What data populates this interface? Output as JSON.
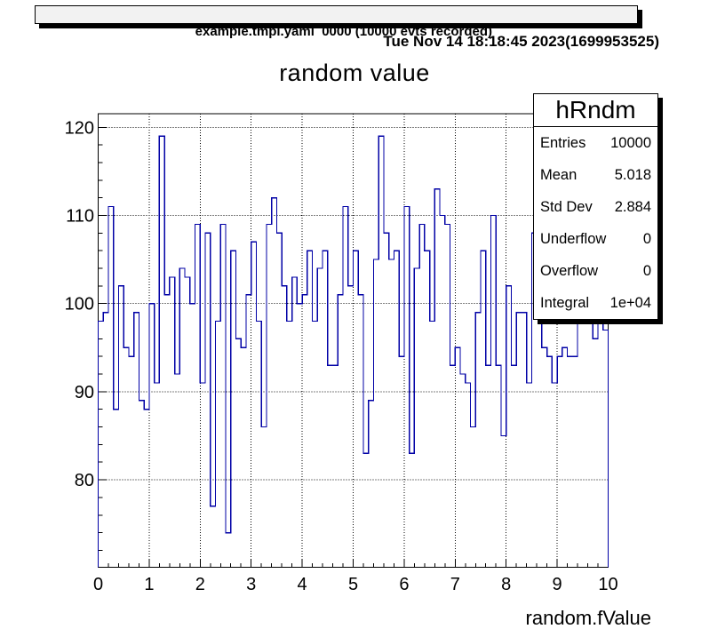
{
  "window": {
    "title_bar": "example.tmpl.yaml  0000 (10000 evts recorded)",
    "datestamp": "Tue Nov 14 18:18:45 2023(1699953525)"
  },
  "stats": {
    "title": "hRndm",
    "rows": [
      {
        "label": "Entries",
        "value": "10000"
      },
      {
        "label": "Mean",
        "value": "5.018"
      },
      {
        "label": "Std Dev",
        "value": "2.884"
      },
      {
        "label": "Underflow",
        "value": "0"
      },
      {
        "label": "Overflow",
        "value": "0"
      },
      {
        "label": "Integral",
        "value": "1e+04"
      }
    ]
  },
  "chart_data": {
    "type": "bar",
    "subtype": "histogram-step",
    "title": "random value",
    "xlabel": "random.fValue",
    "ylabel": "",
    "x_min": 0,
    "x_max": 10,
    "n_bins": 100,
    "bin_width": 0.1,
    "values": [
      98,
      99,
      111,
      88,
      102,
      95,
      94,
      99,
      89,
      88,
      100,
      91,
      119,
      101,
      103,
      92,
      104,
      103,
      100,
      109,
      91,
      108,
      77,
      98,
      109,
      74,
      106,
      96,
      95,
      101,
      107,
      98,
      86,
      109,
      112,
      108,
      102,
      98,
      103,
      100,
      101,
      106,
      98,
      104,
      106,
      93,
      93,
      101,
      111,
      102,
      106,
      101,
      83,
      89,
      105,
      119,
      108,
      105,
      106,
      94,
      111,
      83,
      104,
      109,
      106,
      98,
      113,
      110,
      109,
      93,
      95,
      92,
      91,
      86,
      99,
      106,
      93,
      110,
      93,
      85,
      102,
      93,
      99,
      99,
      91,
      108,
      116,
      95,
      94,
      91,
      94,
      95,
      94,
      94,
      117,
      117,
      114,
      96,
      114,
      97
    ],
    "x_ticks": [
      0,
      1,
      2,
      3,
      4,
      5,
      6,
      7,
      8,
      9,
      10
    ],
    "x_minor_step": 0.2,
    "y_ticks": [
      80,
      90,
      100,
      110,
      120
    ],
    "y_minor_step": 2,
    "ylim": [
      70.08,
      121.54
    ],
    "grid": true,
    "legend_position": "none",
    "line_color": "#0000a6",
    "axis_color": "#000000",
    "grid_color": "#000000"
  }
}
